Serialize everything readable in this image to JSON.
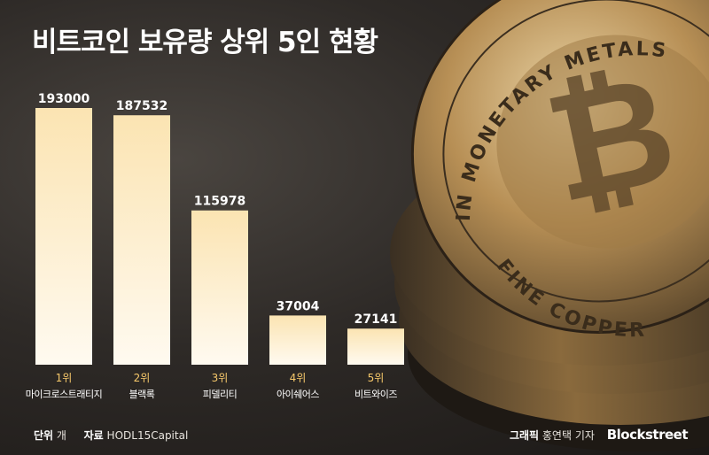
{
  "page": {
    "title": "비트코인 보유량 상위 5인 현황"
  },
  "chart_data": {
    "type": "bar",
    "title": "비트코인 보유량 상위 5인 현황",
    "categories": [
      "마이크로스트래티지",
      "블랙록",
      "피델리티",
      "아이쉐어스",
      "비트와이즈"
    ],
    "ranks": [
      "1위",
      "2위",
      "3위",
      "4위",
      "5위"
    ],
    "values": [
      193000,
      187532,
      115978,
      37004,
      27141
    ],
    "ylim": [
      0,
      193000
    ],
    "xlabel": "",
    "ylabel": "",
    "grid": false,
    "legend": "none"
  },
  "footer": {
    "unit_label": "단위",
    "unit_value": "개",
    "source_label": "자료",
    "source_value": "HODL15Capital",
    "credit_label": "그래픽",
    "credit_value": "홍연택 기자",
    "brand": "Blockstreet"
  },
  "colors": {
    "bar_top": "#fbe4b2",
    "bar_bottom": "#fffaf0",
    "value_text": "#ffffff",
    "rank_text": "#f6c86a",
    "category_text": "#ffffff",
    "coin_gold": "#c79a54"
  },
  "coin": {
    "ring_text_top": "IN MONETARY METALS",
    "ring_text_bottom": "FINE COPPER"
  }
}
